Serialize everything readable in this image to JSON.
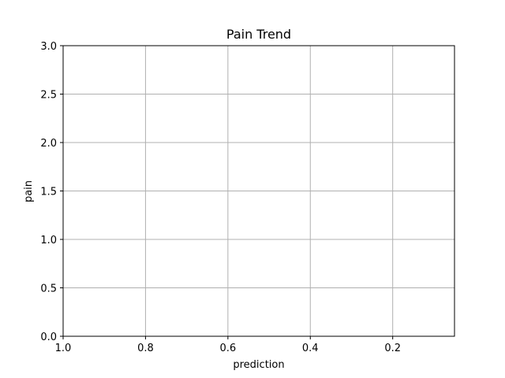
{
  "chart_data": {
    "type": "line",
    "title": "Pain Trend",
    "xlabel": "prediction",
    "ylabel": "pain",
    "x_inverted": true,
    "xlim": [
      1.0,
      0.05
    ],
    "ylim": [
      0.0,
      3.0
    ],
    "xticks": [
      1.0,
      0.8,
      0.6,
      0.4,
      0.2
    ],
    "xtick_labels": [
      "1.0",
      "0.8",
      "0.6",
      "0.4",
      "0.2"
    ],
    "yticks": [
      0.0,
      0.5,
      1.0,
      1.5,
      2.0,
      2.5,
      3.0
    ],
    "ytick_labels": [
      "0.0",
      "0.5",
      "1.0",
      "1.5",
      "2.0",
      "2.5",
      "3.0"
    ],
    "grid": true,
    "series": [],
    "colors": {
      "grid": "#b0b0b0",
      "axis": "#000000",
      "background": "#ffffff"
    }
  }
}
